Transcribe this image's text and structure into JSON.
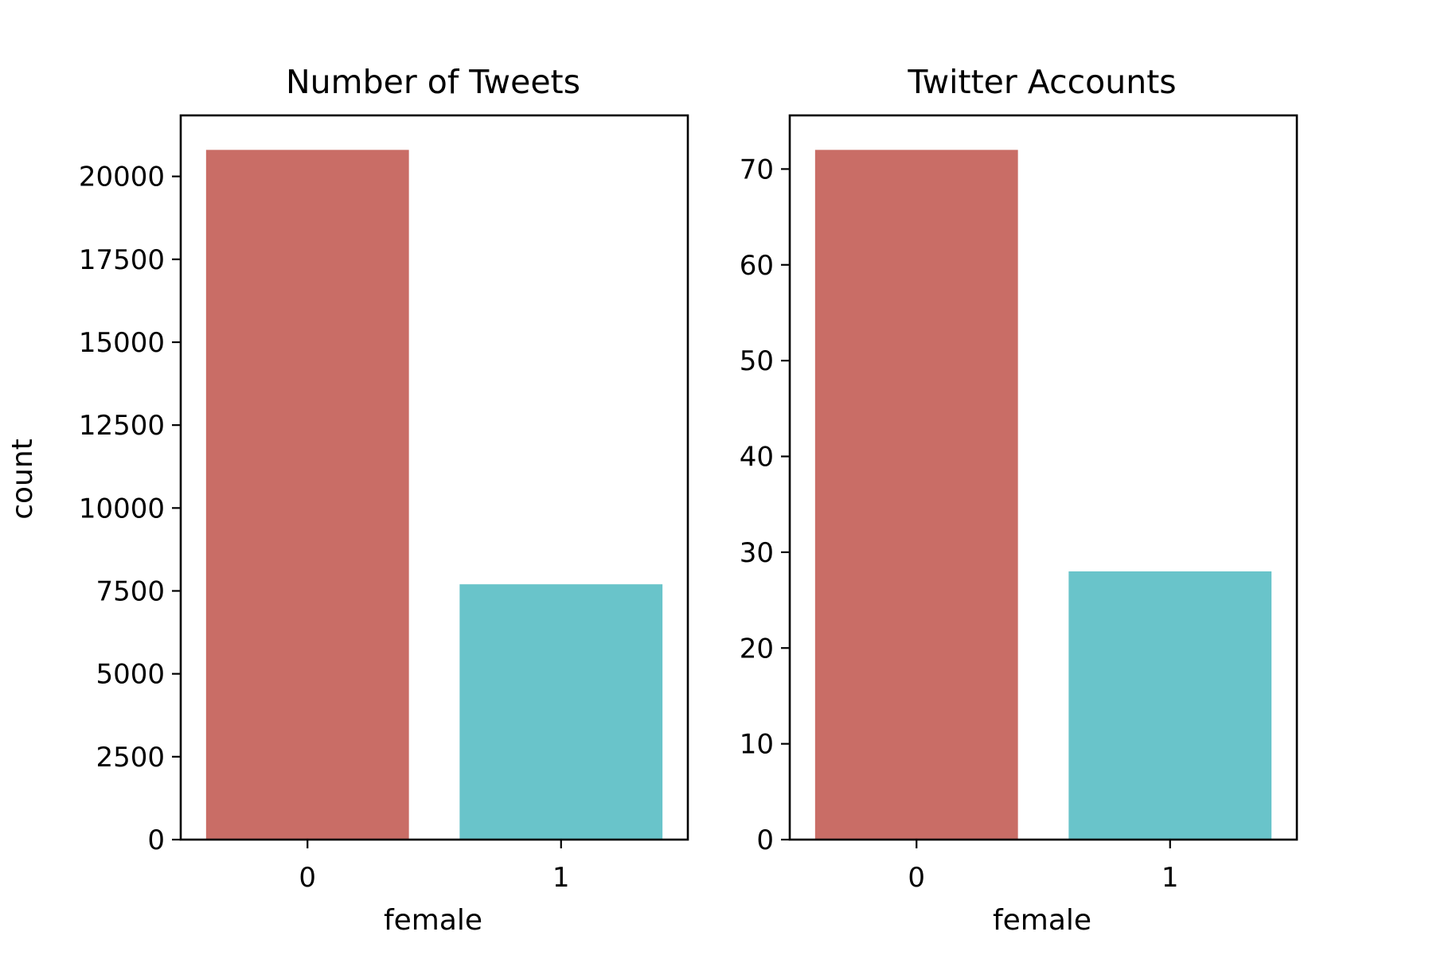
{
  "chart_data": [
    {
      "type": "bar",
      "title": "Number of Tweets",
      "xlabel": "female",
      "ylabel": "count",
      "categories": [
        "0",
        "1"
      ],
      "values": [
        20800,
        7700
      ],
      "colors": [
        "#c96d66",
        "#69c4ca"
      ],
      "ylim": [
        0,
        21840
      ],
      "yticks": [
        0,
        2500,
        5000,
        7500,
        10000,
        12500,
        15000,
        17500,
        20000
      ],
      "grid": false
    },
    {
      "type": "bar",
      "title": "Twitter Accounts",
      "xlabel": "female",
      "ylabel": "",
      "categories": [
        "0",
        "1"
      ],
      "values": [
        72,
        28
      ],
      "colors": [
        "#c96d66",
        "#69c4ca"
      ],
      "ylim": [
        0,
        75.6
      ],
      "yticks": [
        0,
        10,
        20,
        30,
        40,
        50,
        60,
        70
      ],
      "grid": false
    }
  ]
}
